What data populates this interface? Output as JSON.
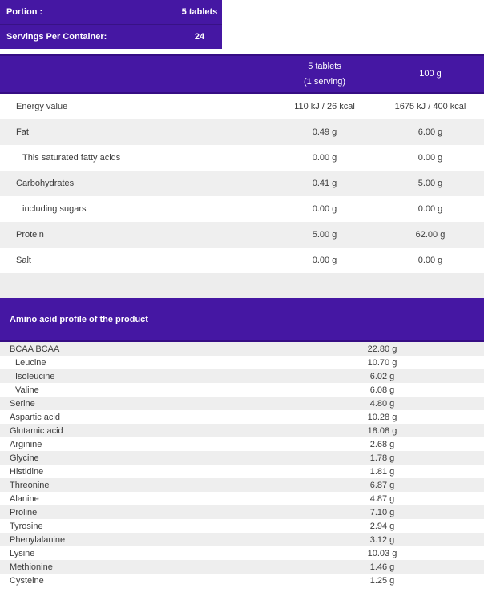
{
  "colors": {
    "accent_purple": "#4517a3",
    "accent_purple_dark": "#360d84",
    "row_alt_gray": "#efefef",
    "band_gray": "#ededed",
    "text_dark": "#3c3c3c",
    "text_on_purple": "#ffffff"
  },
  "portion_box": {
    "rows": [
      {
        "label": "Portion :",
        "value": "5 tablets"
      },
      {
        "label": "Servings Per Container:",
        "value": "24"
      }
    ]
  },
  "nutrition_table": {
    "header": {
      "col_serving_line1": "5 tablets",
      "col_serving_line2": "(1 serving)",
      "col_100g": "100 g"
    },
    "rows": [
      {
        "label": "Energy value",
        "per_serving": "110 kJ / 26 kcal",
        "per_100g": "1675 kJ / 400 kcal"
      },
      {
        "label": "Fat",
        "per_serving": "0.49 g",
        "per_100g": "6.00 g"
      },
      {
        "label": "This saturated fatty acids",
        "per_serving": "0.00 g",
        "per_100g": "0.00 g"
      },
      {
        "label": "Carbohydrates",
        "per_serving": "0.41 g",
        "per_100g": "5.00 g"
      },
      {
        "label": "including sugars",
        "per_serving": "0.00 g",
        "per_100g": "0.00 g"
      },
      {
        "label": "Protein",
        "per_serving": "5.00 g",
        "per_100g": "62.00 g"
      },
      {
        "label": "Salt",
        "per_serving": "0.00 g",
        "per_100g": "0.00 g"
      }
    ]
  },
  "amino_section": {
    "title": "Amino acid profile of the product",
    "rows": [
      {
        "label": "BCAA BCAA",
        "value": "22.80 g"
      },
      {
        "label": "Leucine",
        "value": "10.70 g"
      },
      {
        "label": "Isoleucine",
        "value": "6.02 g"
      },
      {
        "label": "Valine",
        "value": "6.08 g"
      },
      {
        "label": "Serine",
        "value": "4.80 g"
      },
      {
        "label": "Aspartic acid",
        "value": "10.28 g"
      },
      {
        "label": "Glutamic acid",
        "value": "18.08 g"
      },
      {
        "label": "Arginine",
        "value": "2.68 g"
      },
      {
        "label": "Glycine",
        "value": "1.78 g"
      },
      {
        "label": "Histidine",
        "value": "1.81 g"
      },
      {
        "label": "Threonine",
        "value": "6.87 g"
      },
      {
        "label": "Alanine",
        "value": "4.87 g"
      },
      {
        "label": "Proline",
        "value": "7.10 g"
      },
      {
        "label": "Tyrosine",
        "value": "2.94 g"
      },
      {
        "label": "Phenylalanine",
        "value": "3.12 g"
      },
      {
        "label": "Lysine",
        "value": "10.03 g"
      },
      {
        "label": "Methionine",
        "value": "1.46 g"
      },
      {
        "label": "Cysteine",
        "value": "1.25 g"
      }
    ]
  }
}
